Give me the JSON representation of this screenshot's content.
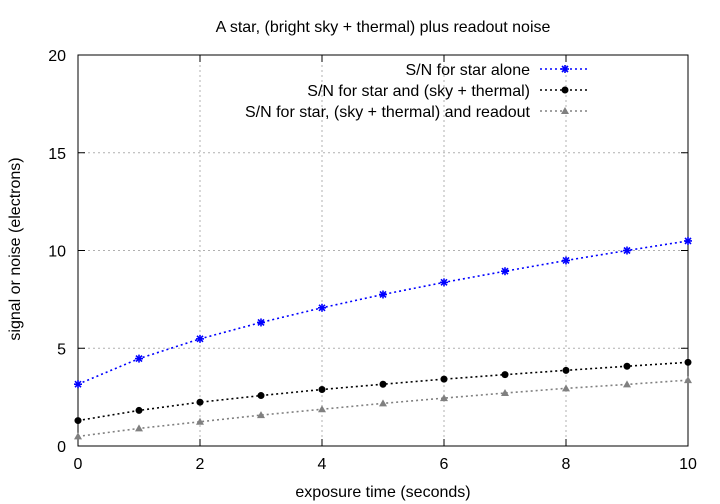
{
  "chart_data": {
    "type": "line",
    "title": "A star, (bright sky + thermal) plus readout noise",
    "xlabel": "exposure time (seconds)",
    "ylabel": "signal or noise (electrons)",
    "xlim": [
      0,
      10
    ],
    "ylim": [
      0,
      20
    ],
    "x_ticks": [
      0,
      2,
      4,
      6,
      8,
      10
    ],
    "y_ticks": [
      0,
      5,
      10,
      15,
      20
    ],
    "grid": true,
    "legend_position": "top-right",
    "x": [
      0,
      1,
      2,
      3,
      4,
      5,
      6,
      7,
      8,
      9,
      10
    ],
    "series": [
      {
        "name": "S/N for star alone",
        "color": "#0000ff",
        "marker": "star",
        "values": [
          3.16,
          4.47,
          5.48,
          6.32,
          7.07,
          7.75,
          8.37,
          8.94,
          9.49,
          10.0,
          10.49
        ]
      },
      {
        "name": "S/N for star and (sky + thermal)",
        "color": "#000000",
        "marker": "circle",
        "values": [
          1.3,
          1.82,
          2.24,
          2.58,
          2.89,
          3.16,
          3.42,
          3.65,
          3.87,
          4.08,
          4.28
        ]
      },
      {
        "name": "S/N for star, (sky + thermal) and readout",
        "color": "#808080",
        "marker": "triangle",
        "values": [
          0.49,
          0.9,
          1.24,
          1.58,
          1.88,
          2.18,
          2.45,
          2.71,
          2.95,
          3.15,
          3.37
        ]
      }
    ]
  }
}
